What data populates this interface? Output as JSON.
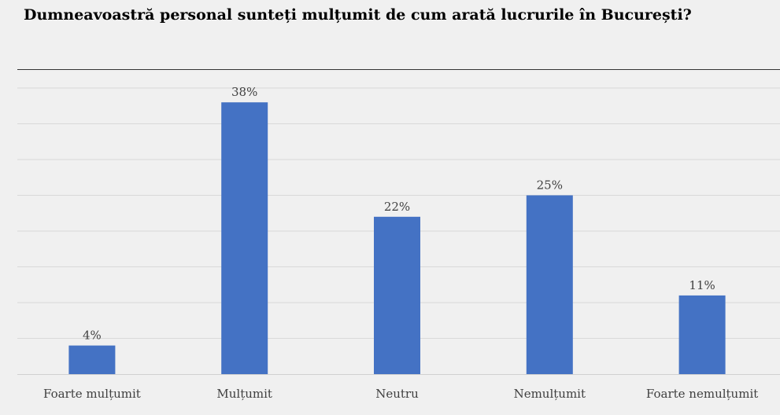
{
  "chart_data": {
    "type": "bar",
    "title": "Dumneavoastră personal sunteți mulțumit de cum arată lucrurile în București?",
    "categories": [
      "Foarte mulțumit",
      "Mulțumit",
      "Neutru",
      "Nemulțumit",
      "Foarte nemulțumit"
    ],
    "values": [
      4,
      38,
      22,
      25,
      11
    ],
    "value_labels": [
      "4%",
      "38%",
      "22%",
      "25%",
      "11%"
    ],
    "ylim": [
      0,
      40
    ],
    "grid": true,
    "bar_color": "#4472c4",
    "grid_color": "#d9d9d9",
    "axis_color": "#d0d0d0",
    "background": "#f0f0f0"
  }
}
